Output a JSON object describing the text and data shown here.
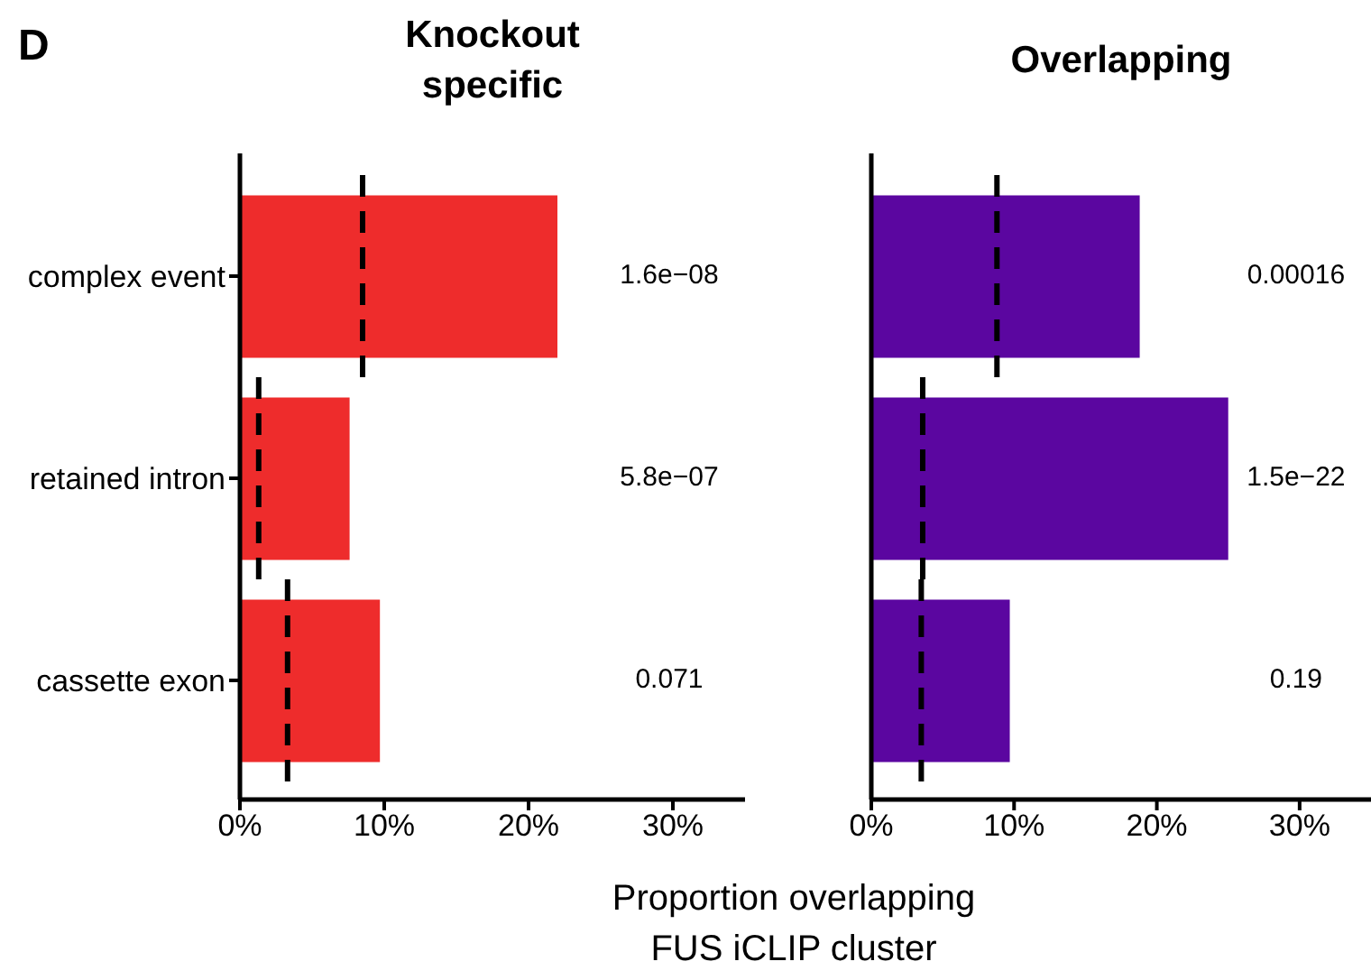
{
  "chart_data": [
    {
      "type": "bar",
      "orientation": "horizontal",
      "title": "Knockout specific",
      "xlabel": "Proportion overlapping FUS iCLIP cluster",
      "categories": [
        "complex event",
        "retained intron",
        "cassette exon"
      ],
      "series": [
        {
          "type": "bar",
          "color": "#ee2c2c",
          "values": [
            22.0,
            7.6,
            9.7
          ]
        }
      ],
      "ref_lines": [
        {
          "axis": "x",
          "value": 8.5,
          "color": "#000000",
          "line_style": "dashed"
        },
        {
          "axis": "x",
          "value": 1.3,
          "color": "#000000",
          "line_style": "dashed"
        },
        {
          "axis": "x",
          "value": 3.3,
          "color": "#000000",
          "line_style": "dashed"
        }
      ],
      "xlim": [
        0,
        35
      ],
      "xticks": [
        {
          "value": 0,
          "label": "0%"
        },
        {
          "value": 10,
          "label": "10%"
        },
        {
          "value": 20,
          "label": "20%"
        },
        {
          "value": 30,
          "label": "30%"
        }
      ],
      "annotations": [
        "D",
        "1.6e−08",
        "5.8e−07",
        "0.071"
      ]
    },
    {
      "type": "bar",
      "orientation": "horizontal",
      "title": "Overlapping",
      "categories": [
        null,
        null,
        null
      ],
      "tick_labels": "x",
      "series": [
        {
          "type": "bar",
          "color": "#5b06a0",
          "values": [
            18.8,
            25.0,
            9.7
          ]
        }
      ],
      "ref_lines": [
        {
          "axis": "x",
          "value": 8.8,
          "color": "#000000",
          "line_style": "dashed"
        },
        {
          "axis": "x",
          "value": 3.6,
          "color": "#000000",
          "line_style": "dashed"
        },
        {
          "axis": "x",
          "value": 3.5,
          "color": "#000000",
          "line_style": "dashed"
        }
      ],
      "xlim": [
        0,
        35
      ],
      "xticks": [
        {
          "value": 0,
          "label": "0%"
        },
        {
          "value": 10,
          "label": "10%"
        },
        {
          "value": 20,
          "label": "20%"
        },
        {
          "value": 30,
          "label": "30%"
        }
      ],
      "annotations": [
        "0.00016",
        "1.5e−22",
        "0.19"
      ]
    }
  ]
}
